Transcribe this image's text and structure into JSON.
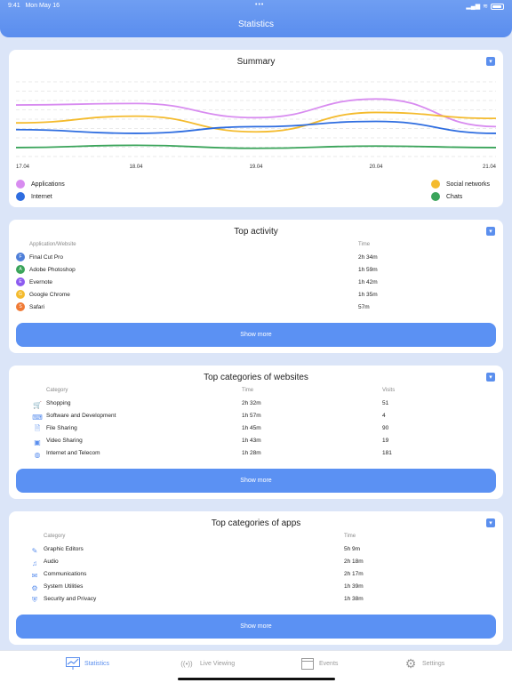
{
  "status_bar": {
    "time": "9:41",
    "date": "Mon May 16"
  },
  "header": {
    "title": "Statistics"
  },
  "summary": {
    "title": "Summary",
    "x_labels": [
      "17.04",
      "18.04",
      "19.04",
      "20.04",
      "21.04"
    ],
    "legend": [
      {
        "label": "Applications",
        "color": "#d88cf0"
      },
      {
        "label": "Internet",
        "color": "#2e6de0"
      },
      {
        "label": "Social networks",
        "color": "#f4bb2e"
      },
      {
        "label": "Chats",
        "color": "#3aa45a"
      }
    ]
  },
  "chart_data": {
    "type": "line",
    "x": [
      "17.04",
      "18.04",
      "19.04",
      "20.04",
      "21.04"
    ],
    "series": [
      {
        "name": "Applications",
        "values": [
          69,
          71,
          52,
          77,
          40
        ]
      },
      {
        "name": "Social networks",
        "values": [
          45,
          54,
          33,
          59,
          51
        ]
      },
      {
        "name": "Internet",
        "values": [
          36,
          31,
          40,
          47,
          31
        ]
      },
      {
        "name": "Chats",
        "values": [
          12,
          15,
          11,
          14,
          12
        ]
      }
    ],
    "ylim": [
      0,
      100
    ],
    "grid": true
  },
  "top_activity": {
    "title": "Top activity",
    "col_app": "Application/Website",
    "col_time": "Time",
    "rows": [
      {
        "letter": "F",
        "name": "Final Cut Pro",
        "time": "2h 34m",
        "color": "#4f7fd8"
      },
      {
        "letter": "A",
        "name": "Adobe Photoshop",
        "time": "1h 59m",
        "color": "#3aa45a"
      },
      {
        "letter": "E",
        "name": "Evernote",
        "time": "1h 42m",
        "color": "#8c5bf0"
      },
      {
        "letter": "G",
        "name": "Google Chrome",
        "time": "1h 35m",
        "color": "#f4bb2e"
      },
      {
        "letter": "S",
        "name": "Safari",
        "time": "57m",
        "color": "#f07a35"
      }
    ],
    "show_more": "Show more"
  },
  "top_websites": {
    "title": "Top categories of websites",
    "col_category": "Category",
    "col_time": "Time",
    "col_visits": "Visits",
    "rows": [
      {
        "icon": "cart-icon",
        "glyph": "🛒",
        "name": "Shopping",
        "time": "2h 32m",
        "visits": "51"
      },
      {
        "icon": "code-icon",
        "glyph": "⌨",
        "name": "Software and Development",
        "time": "1h 57m",
        "visits": "4"
      },
      {
        "icon": "file-icon",
        "glyph": "🗎",
        "name": "File Sharing",
        "time": "1h 45m",
        "visits": "90"
      },
      {
        "icon": "video-icon",
        "glyph": "▣",
        "name": "Video Sharing",
        "time": "1h 43m",
        "visits": "19"
      },
      {
        "icon": "globe-icon",
        "glyph": "◍",
        "name": "Internet and Telecom",
        "time": "1h 28m",
        "visits": "181"
      }
    ],
    "show_more": "Show more"
  },
  "top_apps": {
    "title": "Top categories of apps",
    "col_category": "Category",
    "col_time": "Time",
    "rows": [
      {
        "icon": "brush-icon",
        "glyph": "✎",
        "name": "Graphic Editors",
        "time": "5h 9m"
      },
      {
        "icon": "speaker-icon",
        "glyph": "♫",
        "name": "Audio",
        "time": "2h 18m"
      },
      {
        "icon": "chat-icon",
        "glyph": "✉",
        "name": "Communications",
        "time": "2h 17m"
      },
      {
        "icon": "gear-icon",
        "glyph": "⚙",
        "name": "System Utilities",
        "time": "1h 39m"
      },
      {
        "icon": "shield-icon",
        "glyph": "⛨",
        "name": "Security and Privacy",
        "time": "1h 38m"
      }
    ],
    "show_more": "Show more"
  },
  "tabbar": {
    "tabs": [
      {
        "label": "Statistics",
        "icon": "chart-icon",
        "active": true
      },
      {
        "label": "Live Viewing",
        "icon": "broadcast-icon",
        "active": false
      },
      {
        "label": "Events",
        "icon": "calendar-icon",
        "active": false
      },
      {
        "label": "Settings",
        "icon": "gear-icon",
        "active": false
      }
    ]
  },
  "colors": {
    "accent": "#5b8fee",
    "background": "#dbe5f8"
  }
}
